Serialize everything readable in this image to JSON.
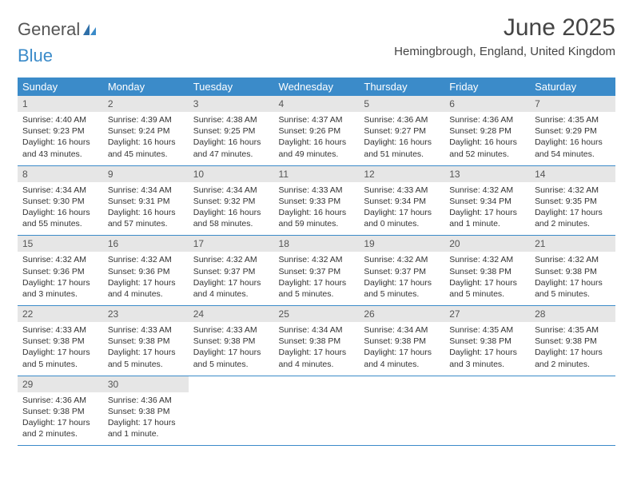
{
  "brand": {
    "part1": "General",
    "part2": "Blue"
  },
  "title": "June 2025",
  "location": "Hemingbrough, England, United Kingdom",
  "styling": {
    "header_bg": "#3b8bc9",
    "header_text": "#ffffff",
    "daynum_bg": "#e6e6e6",
    "border_color": "#3b8bc9",
    "body_font_size": 10.5,
    "title_font_size": 30,
    "location_font_size": 15
  },
  "weekdays": [
    "Sunday",
    "Monday",
    "Tuesday",
    "Wednesday",
    "Thursday",
    "Friday",
    "Saturday"
  ],
  "cells": [
    {
      "n": "1",
      "sr": "4:40 AM",
      "ss": "9:23 PM",
      "dl": "16 hours and 43 minutes."
    },
    {
      "n": "2",
      "sr": "4:39 AM",
      "ss": "9:24 PM",
      "dl": "16 hours and 45 minutes."
    },
    {
      "n": "3",
      "sr": "4:38 AM",
      "ss": "9:25 PM",
      "dl": "16 hours and 47 minutes."
    },
    {
      "n": "4",
      "sr": "4:37 AM",
      "ss": "9:26 PM",
      "dl": "16 hours and 49 minutes."
    },
    {
      "n": "5",
      "sr": "4:36 AM",
      "ss": "9:27 PM",
      "dl": "16 hours and 51 minutes."
    },
    {
      "n": "6",
      "sr": "4:36 AM",
      "ss": "9:28 PM",
      "dl": "16 hours and 52 minutes."
    },
    {
      "n": "7",
      "sr": "4:35 AM",
      "ss": "9:29 PM",
      "dl": "16 hours and 54 minutes."
    },
    {
      "n": "8",
      "sr": "4:34 AM",
      "ss": "9:30 PM",
      "dl": "16 hours and 55 minutes."
    },
    {
      "n": "9",
      "sr": "4:34 AM",
      "ss": "9:31 PM",
      "dl": "16 hours and 57 minutes."
    },
    {
      "n": "10",
      "sr": "4:34 AM",
      "ss": "9:32 PM",
      "dl": "16 hours and 58 minutes."
    },
    {
      "n": "11",
      "sr": "4:33 AM",
      "ss": "9:33 PM",
      "dl": "16 hours and 59 minutes."
    },
    {
      "n": "12",
      "sr": "4:33 AM",
      "ss": "9:34 PM",
      "dl": "17 hours and 0 minutes."
    },
    {
      "n": "13",
      "sr": "4:32 AM",
      "ss": "9:34 PM",
      "dl": "17 hours and 1 minute."
    },
    {
      "n": "14",
      "sr": "4:32 AM",
      "ss": "9:35 PM",
      "dl": "17 hours and 2 minutes."
    },
    {
      "n": "15",
      "sr": "4:32 AM",
      "ss": "9:36 PM",
      "dl": "17 hours and 3 minutes."
    },
    {
      "n": "16",
      "sr": "4:32 AM",
      "ss": "9:36 PM",
      "dl": "17 hours and 4 minutes."
    },
    {
      "n": "17",
      "sr": "4:32 AM",
      "ss": "9:37 PM",
      "dl": "17 hours and 4 minutes."
    },
    {
      "n": "18",
      "sr": "4:32 AM",
      "ss": "9:37 PM",
      "dl": "17 hours and 5 minutes."
    },
    {
      "n": "19",
      "sr": "4:32 AM",
      "ss": "9:37 PM",
      "dl": "17 hours and 5 minutes."
    },
    {
      "n": "20",
      "sr": "4:32 AM",
      "ss": "9:38 PM",
      "dl": "17 hours and 5 minutes."
    },
    {
      "n": "21",
      "sr": "4:32 AM",
      "ss": "9:38 PM",
      "dl": "17 hours and 5 minutes."
    },
    {
      "n": "22",
      "sr": "4:33 AM",
      "ss": "9:38 PM",
      "dl": "17 hours and 5 minutes."
    },
    {
      "n": "23",
      "sr": "4:33 AM",
      "ss": "9:38 PM",
      "dl": "17 hours and 5 minutes."
    },
    {
      "n": "24",
      "sr": "4:33 AM",
      "ss": "9:38 PM",
      "dl": "17 hours and 5 minutes."
    },
    {
      "n": "25",
      "sr": "4:34 AM",
      "ss": "9:38 PM",
      "dl": "17 hours and 4 minutes."
    },
    {
      "n": "26",
      "sr": "4:34 AM",
      "ss": "9:38 PM",
      "dl": "17 hours and 4 minutes."
    },
    {
      "n": "27",
      "sr": "4:35 AM",
      "ss": "9:38 PM",
      "dl": "17 hours and 3 minutes."
    },
    {
      "n": "28",
      "sr": "4:35 AM",
      "ss": "9:38 PM",
      "dl": "17 hours and 2 minutes."
    },
    {
      "n": "29",
      "sr": "4:36 AM",
      "ss": "9:38 PM",
      "dl": "17 hours and 2 minutes."
    },
    {
      "n": "30",
      "sr": "4:36 AM",
      "ss": "9:38 PM",
      "dl": "17 hours and 1 minute."
    }
  ],
  "labels": {
    "sunrise": "Sunrise: ",
    "sunset": "Sunset: ",
    "daylight": "Daylight: "
  }
}
